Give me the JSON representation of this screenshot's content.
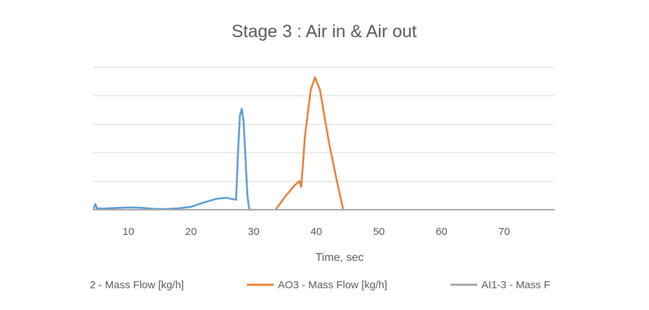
{
  "chart_data": {
    "type": "line",
    "title": "Stage 3 : Air in & Air out",
    "xlabel": "Time, sec",
    "ylabel": "",
    "xlim": [
      4.4,
      78
    ],
    "ylim": [
      0,
      5
    ],
    "x_ticks": [
      10,
      20,
      30,
      40,
      50,
      60,
      70
    ],
    "y_gridlines": [
      0,
      1,
      2,
      3,
      4,
      5
    ],
    "y_tick_labels_visible": false,
    "grid": true,
    "legend_position": "bottom",
    "series": [
      {
        "name": "2 - Mass Flow [kg/h]",
        "color": "#5b9bd5",
        "points": [
          [
            4.5,
            0.05
          ],
          [
            4.7,
            0.2
          ],
          [
            5.0,
            0.05
          ],
          [
            6,
            0.04
          ],
          [
            8,
            0.06
          ],
          [
            10,
            0.08
          ],
          [
            12,
            0.07
          ],
          [
            14,
            0.03
          ],
          [
            16,
            0.02
          ],
          [
            18,
            0.05
          ],
          [
            20,
            0.1
          ],
          [
            22,
            0.25
          ],
          [
            24,
            0.38
          ],
          [
            25.5,
            0.42
          ],
          [
            26.5,
            0.38
          ],
          [
            27.2,
            0.35
          ],
          [
            27.5,
            2.0
          ],
          [
            27.8,
            3.3
          ],
          [
            28.1,
            3.55
          ],
          [
            28.4,
            3.1
          ],
          [
            28.7,
            1.8
          ],
          [
            29.0,
            0.5
          ],
          [
            29.3,
            0.0
          ],
          [
            30,
            0.0
          ]
        ]
      },
      {
        "name": "AO3 - Mass Flow [kg/h]",
        "color": "#ed7d31",
        "points": [
          [
            33.5,
            0.0
          ],
          [
            35.0,
            0.45
          ],
          [
            36.5,
            0.85
          ],
          [
            37.3,
            1.0
          ],
          [
            37.6,
            0.8
          ],
          [
            38.2,
            2.6
          ],
          [
            39.1,
            4.2
          ],
          [
            39.8,
            4.65
          ],
          [
            40.6,
            4.2
          ],
          [
            42.0,
            2.4
          ],
          [
            43.3,
            1.0
          ],
          [
            44.3,
            0.0
          ]
        ]
      },
      {
        "name": "AI1-3 - Mass F",
        "color": "#a5a5a5",
        "points": [
          [
            4.4,
            0.0
          ],
          [
            78,
            0.0
          ]
        ]
      }
    ]
  }
}
